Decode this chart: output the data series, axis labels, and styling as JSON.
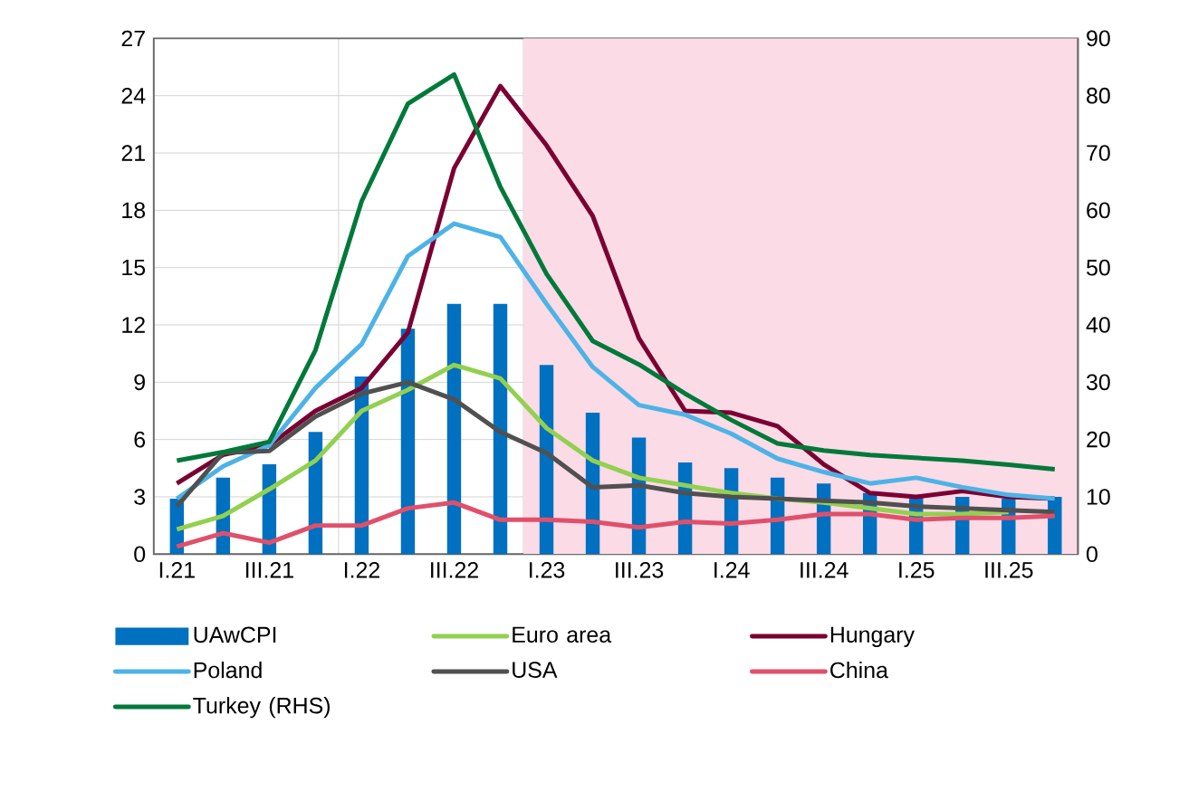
{
  "chart_data": {
    "type": "line",
    "categories": [
      "I.21",
      null,
      "III.21",
      null,
      "I.22",
      null,
      "III.22",
      null,
      "I.23",
      null,
      "III.23",
      null,
      "I.24",
      null,
      "III.24",
      null,
      "I.25",
      null,
      "III.25",
      null
    ],
    "series": [
      {
        "name": "UAwCPI",
        "type": "bar",
        "color": "#0070c0",
        "values": [
          2.9,
          4.0,
          4.7,
          6.4,
          9.3,
          11.8,
          13.1,
          13.1,
          9.9,
          7.4,
          6.1,
          4.8,
          4.5,
          4.0,
          3.7,
          3.2,
          3.0,
          3.0,
          2.9,
          3.0
        ]
      },
      {
        "name": "Euro area",
        "color": "#92d050",
        "values": [
          1.3,
          2.0,
          3.4,
          4.9,
          7.5,
          8.6,
          9.9,
          9.2,
          6.6,
          4.9,
          4.0,
          3.6,
          3.2,
          2.9,
          2.7,
          2.4,
          2.1,
          2.1,
          2.2,
          null
        ]
      },
      {
        "name": "Hungary",
        "color": "#7b0032",
        "values": [
          3.7,
          5.2,
          5.7,
          7.5,
          8.7,
          11.6,
          20.2,
          24.5,
          21.4,
          17.7,
          11.3,
          7.5,
          7.4,
          6.7,
          4.7,
          3.2,
          3.0,
          3.3,
          3.0,
          2.9
        ]
      },
      {
        "name": "Poland",
        "color": "#4db3e6",
        "values": [
          2.9,
          4.6,
          5.7,
          8.7,
          11.0,
          15.6,
          17.3,
          16.6,
          13.1,
          9.8,
          7.8,
          7.3,
          6.3,
          5.0,
          4.3,
          3.7,
          4.0,
          3.5,
          3.1,
          2.9
        ]
      },
      {
        "name": "USA",
        "color": "#505050",
        "values": [
          2.5,
          5.3,
          5.4,
          7.2,
          8.4,
          9.0,
          8.1,
          6.4,
          5.3,
          3.5,
          3.6,
          3.2,
          3.0,
          2.9,
          2.8,
          2.7,
          2.5,
          2.4,
          2.3,
          2.2
        ]
      },
      {
        "name": "China",
        "color": "#e0506a",
        "values": [
          0.4,
          1.1,
          0.6,
          1.5,
          1.5,
          2.4,
          2.7,
          1.8,
          1.8,
          1.7,
          1.4,
          1.7,
          1.6,
          1.8,
          2.1,
          2.1,
          1.8,
          1.9,
          1.9,
          2.0
        ]
      },
      {
        "name": "Turkey (RHS)",
        "color": "#00793a",
        "axis": "y2",
        "values": [
          16.3,
          17.8,
          19.6,
          35.6,
          61.6,
          78.6,
          83.7,
          64.1,
          48.9,
          37.2,
          33.1,
          28.0,
          23.4,
          19.3,
          18.1,
          17.3,
          16.8,
          16.3,
          15.6,
          14.8
        ]
      }
    ],
    "ylim": [
      0,
      27
    ],
    "yticks": [
      0,
      3,
      6,
      9,
      12,
      15,
      18,
      21,
      24,
      27
    ],
    "y2lim": [
      0,
      90
    ],
    "y2ticks": [
      0,
      10,
      20,
      30,
      40,
      50,
      60,
      70,
      80,
      90
    ],
    "grid": true,
    "legend": "bottom"
  }
}
